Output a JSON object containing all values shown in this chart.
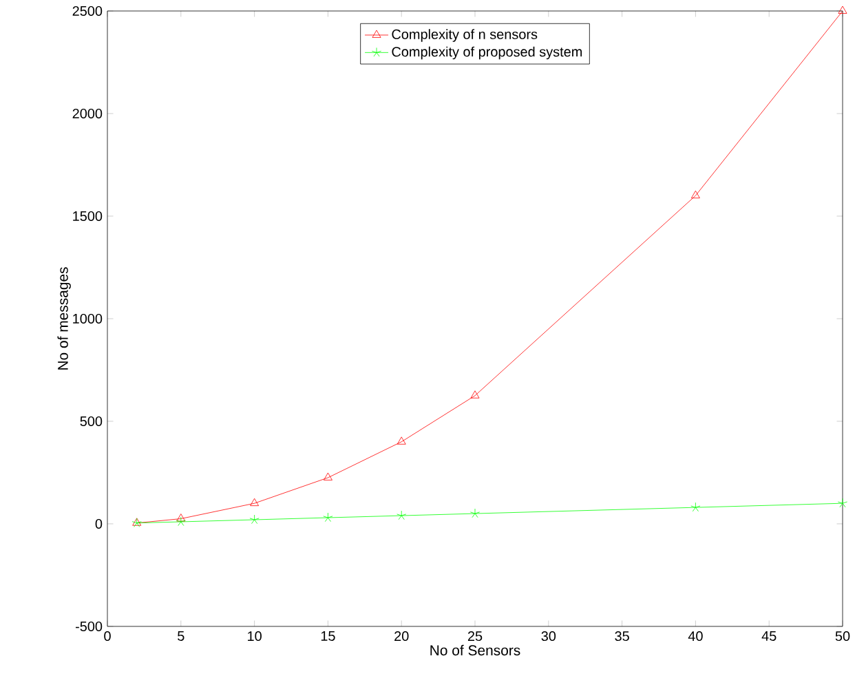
{
  "chart_data": {
    "type": "line",
    "xlabel": "No of Sensors",
    "ylabel": "No of messages",
    "x": [
      2,
      5,
      10,
      15,
      20,
      25,
      40,
      50
    ],
    "series": [
      {
        "name": "Complexity of n sensors",
        "color": "#ff0000",
        "marker": "triangle",
        "values": [
          4,
          25,
          100,
          225,
          400,
          625,
          1600,
          2500
        ]
      },
      {
        "name": "Complexity of proposed system",
        "color": "#00ff00",
        "marker": "cross",
        "values": [
          4,
          10,
          20,
          30,
          40,
          50,
          80,
          100
        ]
      }
    ],
    "xlim": [
      0,
      50
    ],
    "xticks": [
      0,
      5,
      10,
      15,
      20,
      25,
      30,
      35,
      40,
      45,
      50
    ],
    "ylim": [
      -500,
      2500
    ],
    "yticks": [
      -500,
      0,
      500,
      1000,
      1500,
      2000,
      2500
    ],
    "legend": "top",
    "grid": false,
    "line_style": "solid"
  }
}
